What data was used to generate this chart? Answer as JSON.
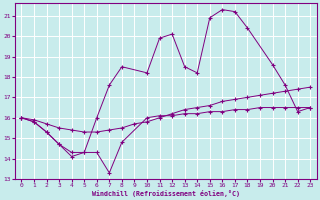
{
  "xlabel": "Windchill (Refroidissement éolien,°C)",
  "background_color": "#c8ecec",
  "grid_color": "#ffffff",
  "line_color": "#800080",
  "xlim": [
    -0.5,
    23.5
  ],
  "ylim": [
    13,
    21.6
  ],
  "yticks": [
    13,
    14,
    15,
    16,
    17,
    18,
    19,
    20,
    21
  ],
  "xticks": [
    0,
    1,
    2,
    3,
    4,
    5,
    6,
    7,
    8,
    9,
    10,
    11,
    12,
    13,
    14,
    15,
    16,
    17,
    18,
    19,
    20,
    21,
    22,
    23
  ],
  "series1_x": [
    0,
    1,
    2,
    3,
    4,
    5,
    6,
    7,
    8,
    10,
    11,
    12,
    13,
    14,
    15,
    16,
    17,
    18,
    19,
    20,
    21,
    22,
    23
  ],
  "series1_y": [
    16.0,
    15.8,
    15.3,
    14.7,
    14.1,
    14.3,
    14.3,
    13.3,
    14.8,
    16.0,
    16.1,
    16.1,
    16.2,
    16.2,
    16.3,
    16.3,
    16.4,
    16.4,
    16.5,
    16.5,
    16.5,
    16.5,
    16.5
  ],
  "series2_x": [
    0,
    1,
    2,
    3,
    4,
    5,
    6,
    7,
    8,
    9,
    10,
    11,
    12,
    13,
    14,
    15,
    16,
    17,
    18,
    19,
    20,
    21,
    22,
    23
  ],
  "series2_y": [
    16.0,
    15.9,
    15.7,
    15.5,
    15.4,
    15.3,
    15.3,
    15.4,
    15.5,
    15.7,
    15.8,
    16.0,
    16.2,
    16.4,
    16.5,
    16.6,
    16.8,
    16.9,
    17.0,
    17.1,
    17.2,
    17.3,
    17.4,
    17.5
  ],
  "series3_x": [
    0,
    1,
    2,
    3,
    4,
    5,
    6,
    7,
    8,
    10,
    11,
    12,
    13,
    14,
    15,
    16,
    17,
    18,
    20,
    21,
    22,
    23
  ],
  "series3_y": [
    16.0,
    15.8,
    15.3,
    14.7,
    14.3,
    14.3,
    16.0,
    17.6,
    18.5,
    18.2,
    19.9,
    20.1,
    18.5,
    18.2,
    20.9,
    21.3,
    21.2,
    20.4,
    18.6,
    17.6,
    16.3,
    16.5
  ]
}
